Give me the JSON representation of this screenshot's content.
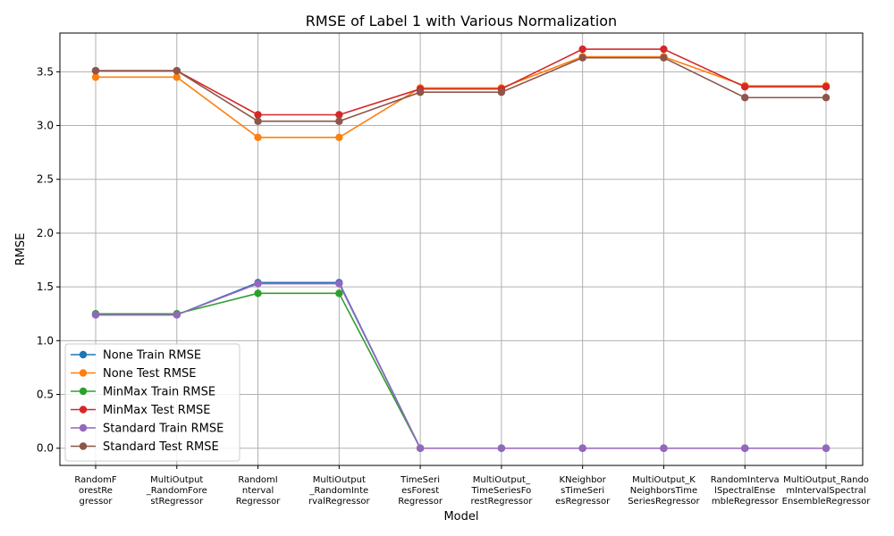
{
  "chart_data": {
    "type": "line",
    "title": "RMSE of Label 1 with Various Normalization",
    "xlabel": "Model",
    "ylabel": "RMSE",
    "ylim": [
      -0.16,
      3.86
    ],
    "yticks": [
      "0.0",
      "0.5",
      "1.0",
      "1.5",
      "2.0",
      "2.5",
      "3.0",
      "3.5"
    ],
    "ytick_values": [
      0,
      0.5,
      1.0,
      1.5,
      2.0,
      2.5,
      3.0,
      3.5
    ],
    "grid": true,
    "legend_position": "lower-left",
    "categories": [
      [
        "RandomF",
        "orestRe",
        "gressor"
      ],
      [
        "MultiOutput",
        "_RandomFore",
        "stRegressor"
      ],
      [
        "RandomI",
        "nterval",
        "Regressor"
      ],
      [
        "MultiOutput",
        "_RandomInte",
        "rvalRegressor"
      ],
      [
        "TimeSeri",
        "esForest",
        "Regressor"
      ],
      [
        "MultiOutput_",
        "TimeSeriesFo",
        "restRegressor"
      ],
      [
        "KNeighbor",
        "sTimeSeri",
        "esRegressor"
      ],
      [
        "MultiOutput_K",
        "NeighborsTime",
        "SeriesRegressor"
      ],
      [
        "RandomInterva",
        "lSpectralEnse",
        "mbleRegressor"
      ],
      [
        "MultiOutput_Rando",
        "mIntervalSpectral",
        "EnsembleRegressor"
      ]
    ],
    "series": [
      {
        "name": "None Train RMSE",
        "color": "#1f77b4",
        "values": [
          1.24,
          1.24,
          1.54,
          1.54,
          0.0,
          0.0,
          0.0,
          0.0,
          0.0,
          0.0
        ]
      },
      {
        "name": "None Test RMSE",
        "color": "#ff7f0e",
        "values": [
          3.45,
          3.45,
          2.89,
          2.89,
          3.35,
          3.35,
          3.64,
          3.64,
          3.37,
          3.37
        ]
      },
      {
        "name": "MinMax Train RMSE",
        "color": "#2ca02c",
        "values": [
          1.25,
          1.25,
          1.44,
          1.44,
          0.0,
          0.0,
          0.0,
          0.0,
          0.0,
          0.0
        ]
      },
      {
        "name": "MinMax Test RMSE",
        "color": "#d62728",
        "values": [
          3.51,
          3.51,
          3.1,
          3.1,
          3.34,
          3.34,
          3.71,
          3.71,
          3.36,
          3.36
        ]
      },
      {
        "name": "Standard Train RMSE",
        "color": "#9467bd",
        "values": [
          1.24,
          1.24,
          1.53,
          1.53,
          0.0,
          0.0,
          0.0,
          0.0,
          0.0,
          0.0
        ]
      },
      {
        "name": "Standard Test RMSE",
        "color": "#8c564b",
        "values": [
          3.51,
          3.51,
          3.04,
          3.04,
          3.31,
          3.31,
          3.63,
          3.63,
          3.26,
          3.26
        ]
      }
    ]
  }
}
